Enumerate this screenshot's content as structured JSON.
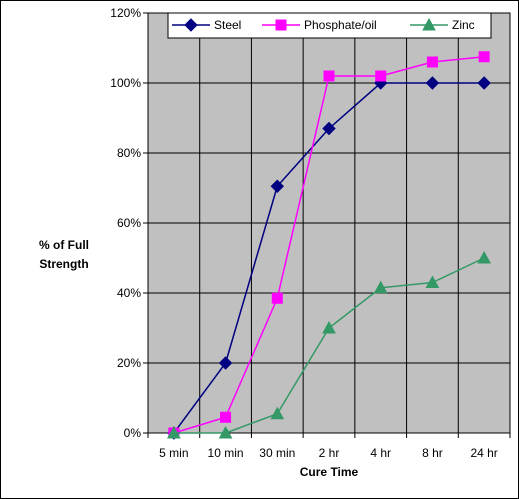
{
  "chart_data": {
    "type": "line",
    "categories": [
      "5 min",
      "10 min",
      "30 min",
      "2 hr",
      "4 hr",
      "8 hr",
      "24 hr"
    ],
    "series": [
      {
        "name": "Steel",
        "values": [
          0,
          20,
          70.5,
          87,
          100,
          100,
          100
        ],
        "color": "#000080",
        "marker": "diamond"
      },
      {
        "name": "Phosphate/oil",
        "values": [
          0,
          4.5,
          38.5,
          102,
          102,
          106,
          107.5
        ],
        "color": "#FF00FF",
        "marker": "square"
      },
      {
        "name": "Zinc",
        "values": [
          0,
          0,
          5.5,
          30,
          41.5,
          43,
          50
        ],
        "color": "#339966",
        "marker": "triangle"
      }
    ],
    "yticks": [
      "0%",
      "20%",
      "40%",
      "60%",
      "80%",
      "100%",
      "120%"
    ],
    "ylim": [
      0,
      120
    ],
    "xlabel": "Cure Time",
    "ylabel_lines": [
      "% of Full",
      "Strength"
    ],
    "grid": true,
    "plot_background": "#C0C0C0",
    "legend_position": "top-right"
  }
}
